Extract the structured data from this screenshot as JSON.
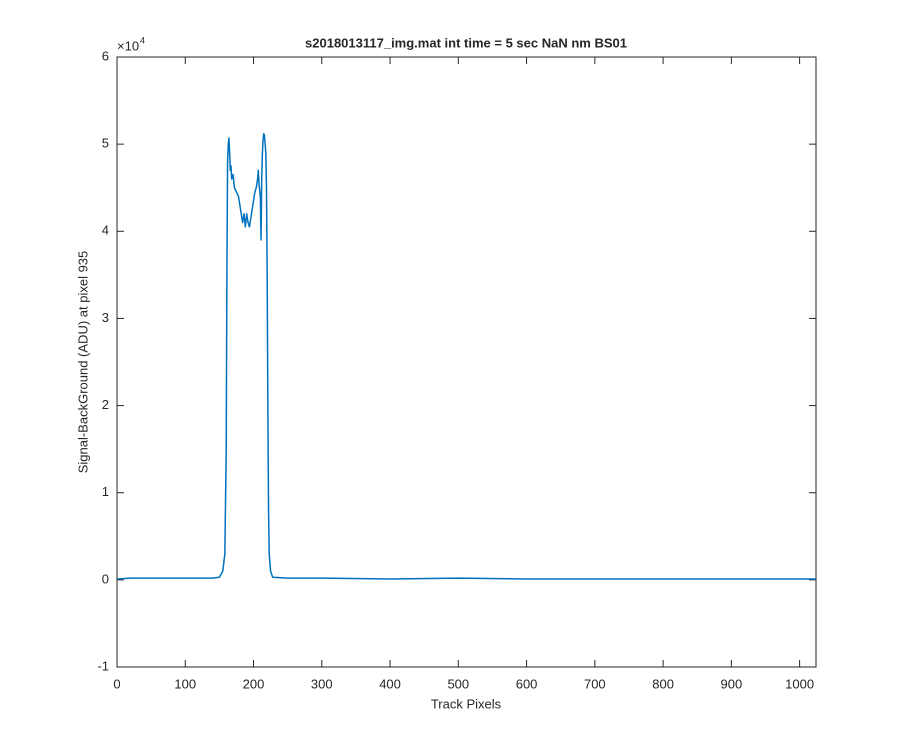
{
  "chart_data": {
    "type": "line",
    "title": "s2018013117_img.mat int time = 5 sec  NaN nm BS01",
    "xlabel": "Track Pixels",
    "ylabel": "Signal-BackGround (ADU) at pixel 935",
    "y_exponent_base": "×10",
    "y_exponent": "4",
    "color": "#0072bd",
    "x": [
      1,
      20,
      50,
      100,
      140,
      150,
      155,
      158,
      160,
      161,
      162,
      163,
      164,
      165,
      166,
      167,
      168,
      170,
      172,
      175,
      178,
      180,
      182,
      184,
      186,
      188,
      190,
      192,
      194,
      196,
      198,
      200,
      202,
      204,
      206,
      207,
      208,
      210,
      211,
      212,
      213,
      214,
      215,
      216,
      217,
      218,
      219,
      220,
      221,
      222,
      223,
      225,
      228,
      250,
      300,
      400,
      500,
      600,
      700,
      800,
      900,
      1000,
      1024
    ],
    "values": [
      0.01,
      0.02,
      0.02,
      0.02,
      0.02,
      0.03,
      0.1,
      0.3,
      1.5,
      3.5,
      4.8,
      5.0,
      5.07,
      4.9,
      4.7,
      4.75,
      4.6,
      4.65,
      4.5,
      4.45,
      4.4,
      4.3,
      4.2,
      4.1,
      4.2,
      4.05,
      4.2,
      4.1,
      4.05,
      4.15,
      4.25,
      4.35,
      4.45,
      4.5,
      4.6,
      4.7,
      4.55,
      4.4,
      3.9,
      4.6,
      4.9,
      5.05,
      5.12,
      5.1,
      5.0,
      4.9,
      4.5,
      3.5,
      2.0,
      0.8,
      0.3,
      0.1,
      0.03,
      0.02,
      0.02,
      0.01,
      0.02,
      0.01,
      0.01,
      0.01,
      0.01,
      0.01,
      0.01
    ],
    "xlim": [
      0,
      1024
    ],
    "xticks": [
      0,
      100,
      200,
      300,
      400,
      500,
      600,
      700,
      800,
      900,
      1000
    ],
    "ylim": [
      -1,
      6
    ],
    "yticks": [
      -1,
      0,
      1,
      2,
      3,
      4,
      5,
      6
    ]
  }
}
